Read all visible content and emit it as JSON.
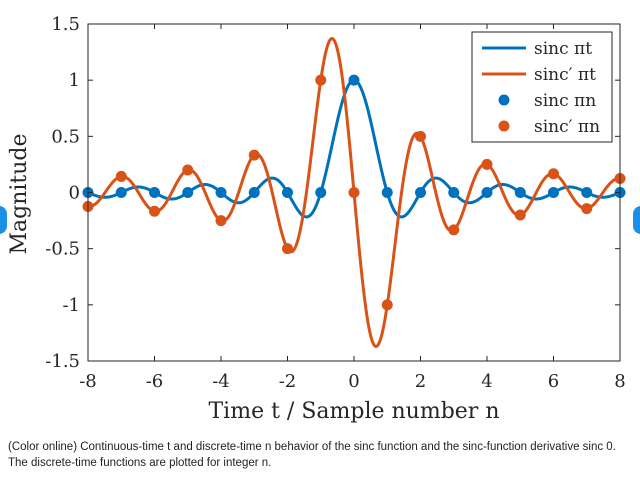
{
  "colors": {
    "blue": "#0072BD",
    "orange": "#D95319",
    "nav": "#1a8fe6"
  },
  "chart_data": {
    "type": "line",
    "xlabel": "Time t / Sample number n",
    "ylabel": "Magnitude",
    "xlim": [
      -8,
      8
    ],
    "ylim": [
      -1.5,
      1.5
    ],
    "xticks": [
      "-8",
      "-6",
      "-4",
      "-2",
      "0",
      "2",
      "4",
      "6",
      "8"
    ],
    "yticks": [
      "1.5",
      "1",
      "0.5",
      "0",
      "-0.5",
      "-1",
      "-1.5"
    ],
    "grid": false,
    "legend_position": "top-right",
    "legend": [
      "sinc πt",
      "sinc′ πt",
      "sinc πn",
      "sinc′ πn"
    ],
    "series": [
      {
        "name": "sinc πt",
        "kind": "line",
        "function": "sinc",
        "color": "#0072BD"
      },
      {
        "name": "sinc′ πt",
        "kind": "line",
        "function": "sinc_derivative",
        "color": "#D95319"
      },
      {
        "name": "sinc πn",
        "kind": "points",
        "color": "#0072BD",
        "x": [
          -8,
          -7,
          -6,
          -5,
          -4,
          -3,
          -2,
          -1,
          0,
          1,
          2,
          3,
          4,
          5,
          6,
          7,
          8
        ],
        "y": [
          0,
          0,
          0,
          0,
          0,
          0,
          0,
          0,
          1,
          0,
          0,
          0,
          0,
          0,
          0,
          0,
          0
        ]
      },
      {
        "name": "sinc′ πn",
        "kind": "points",
        "color": "#D95319",
        "x": [
          -8,
          -7,
          -6,
          -5,
          -4,
          -3,
          -2,
          -1,
          0,
          1,
          2,
          3,
          4,
          5,
          6,
          7,
          8
        ],
        "y": [
          -0.125,
          0.143,
          -0.167,
          0.2,
          -0.25,
          0.333,
          -0.5,
          1,
          0,
          -1,
          0.5,
          -0.333,
          0.25,
          -0.2,
          0.167,
          -0.143,
          0.125
        ]
      }
    ]
  },
  "caption": "(Color online) Continuous-time t and discrete-time n behavior of the sinc function and the sinc-function derivative sinc 0. The discrete-time functions are plotted for integer n."
}
